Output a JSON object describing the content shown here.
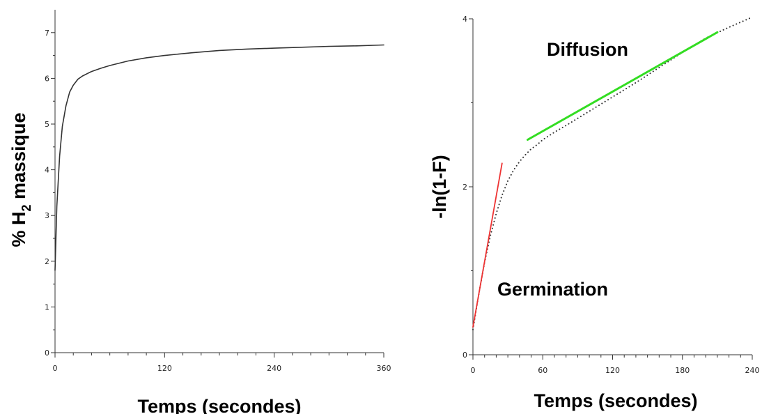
{
  "chart_data": [
    {
      "type": "line",
      "xlabel": "Temps (secondes)",
      "ylabel": {
        "prefix": "% H",
        "subscript": "2",
        "suffix": " massique"
      },
      "xlim": [
        0,
        360
      ],
      "ylim": [
        0,
        7.5
      ],
      "xticks": [
        "0",
        "120",
        "240",
        "360"
      ],
      "yticks": [
        "0",
        "1",
        "2",
        "3",
        "4",
        "5",
        "6",
        "7"
      ],
      "grid": false,
      "series": [
        {
          "color": "#333333",
          "x": [
            0,
            2,
            5,
            8,
            12,
            16,
            20,
            25,
            30,
            40,
            50,
            60,
            80,
            100,
            120,
            150,
            180,
            210,
            240,
            270,
            300,
            330,
            360
          ],
          "y": [
            1.8,
            3.2,
            4.3,
            4.95,
            5.4,
            5.7,
            5.85,
            5.98,
            6.05,
            6.15,
            6.22,
            6.28,
            6.38,
            6.45,
            6.5,
            6.56,
            6.61,
            6.64,
            6.66,
            6.68,
            6.7,
            6.71,
            6.73
          ]
        }
      ]
    },
    {
      "type": "line",
      "xlabel": "Temps (secondes)",
      "ylabel": "-ln(1-F)",
      "xlim": [
        0,
        240
      ],
      "ylim": [
        0,
        4
      ],
      "xticks": [
        "0",
        "60",
        "120",
        "180",
        "240"
      ],
      "yticks": [
        "0",
        "2",
        "4"
      ],
      "grid": false,
      "series": [
        {
          "style": "dotted",
          "color": "#333333",
          "x": [
            0,
            5,
            10,
            15,
            20,
            25,
            30,
            35,
            40,
            45,
            50,
            55,
            60,
            70,
            80,
            100,
            120,
            140,
            160,
            180,
            200,
            220,
            240
          ],
          "y": [
            0.3,
            0.72,
            1.1,
            1.42,
            1.68,
            1.9,
            2.07,
            2.2,
            2.3,
            2.38,
            2.45,
            2.5,
            2.56,
            2.65,
            2.73,
            2.9,
            3.07,
            3.24,
            3.42,
            3.6,
            3.77,
            3.9,
            4.02
          ]
        },
        {
          "style": "solid",
          "color": "#ee3333",
          "x": [
            0,
            25
          ],
          "y": [
            0.33,
            2.28
          ]
        },
        {
          "style": "solid",
          "color": "#33dd22",
          "x": [
            47,
            210
          ],
          "y": [
            2.56,
            3.84
          ]
        }
      ],
      "annotations": [
        {
          "text": "Diffusion"
        },
        {
          "text": "Germination"
        }
      ]
    }
  ]
}
